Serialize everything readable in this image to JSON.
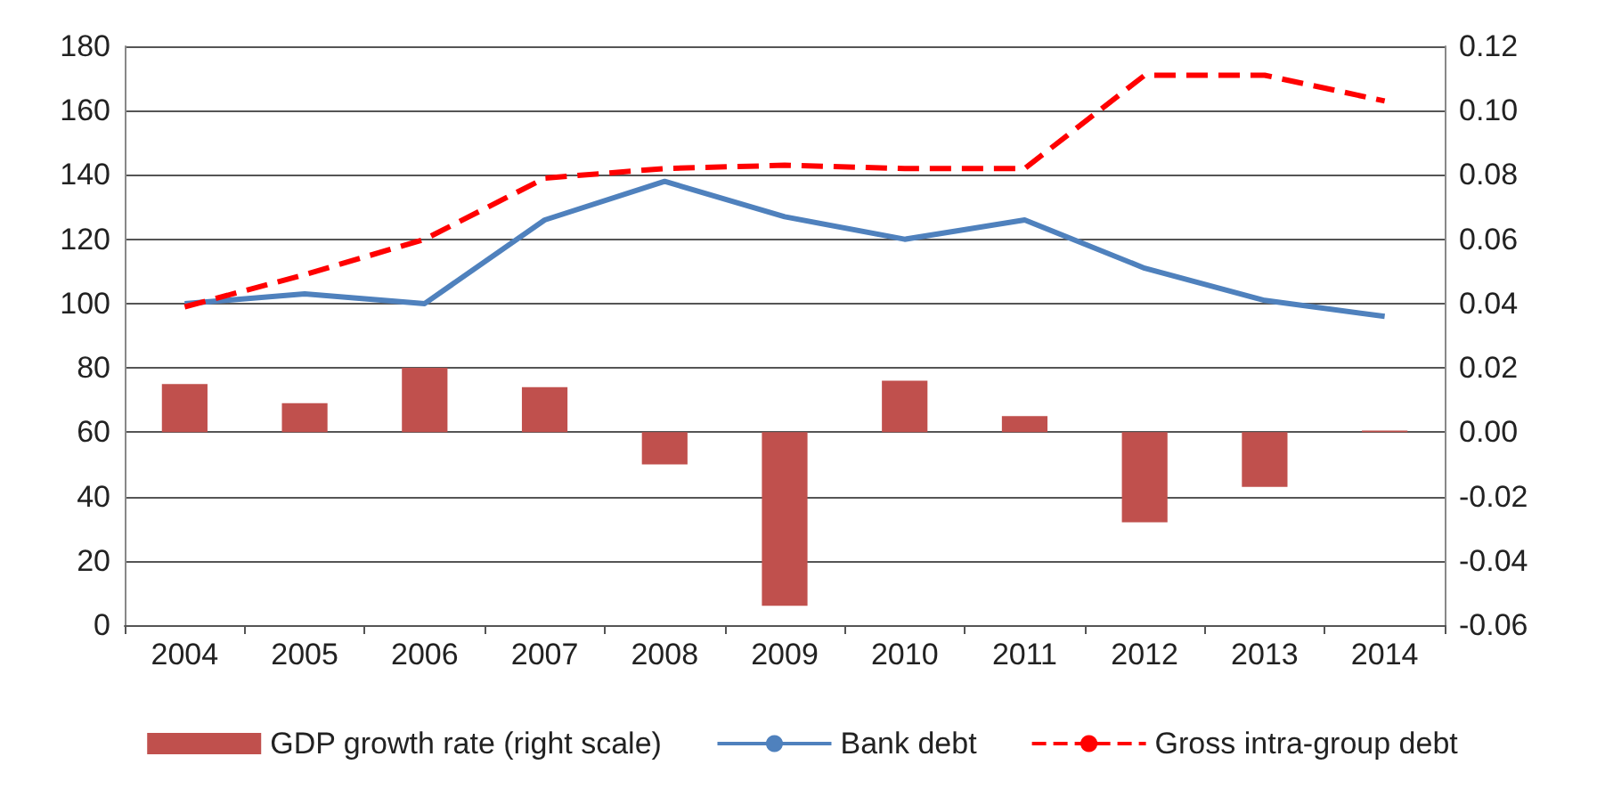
{
  "chart_data": {
    "type": "line",
    "categories": [
      "2004",
      "2005",
      "2006",
      "2007",
      "2008",
      "2009",
      "2010",
      "2011",
      "2012",
      "2013",
      "2014"
    ],
    "series": [
      {
        "name": "GDP growth rate (right scale)",
        "type": "bar",
        "axis": "y2",
        "color": "#c0504d",
        "values": [
          0.015,
          0.009,
          0.02,
          0.014,
          -0.01,
          -0.054,
          0.016,
          0.005,
          -0.028,
          -0.017,
          0.0005
        ]
      },
      {
        "name": "Bank debt",
        "color": "#4f81bd",
        "line_style": "solid",
        "values": [
          100,
          103,
          100,
          126,
          138,
          127,
          120,
          126,
          111,
          101,
          96
        ]
      },
      {
        "name": "Gross intra-group debt",
        "color": "#ff0000",
        "line_style": "dashed",
        "values": [
          99,
          109,
          120,
          139,
          142,
          143,
          142,
          142,
          171,
          171,
          163
        ]
      }
    ],
    "ylim": [
      0,
      180
    ],
    "yticks": [
      0,
      20,
      40,
      60,
      80,
      100,
      120,
      140,
      160,
      180
    ],
    "y2lim": [
      -0.06,
      0.12
    ],
    "y2ticks": [
      {
        "value": -0.06,
        "label": "-0.06"
      },
      {
        "value": -0.04,
        "label": "-0.04"
      },
      {
        "value": -0.02,
        "label": "-0.02"
      },
      {
        "value": 0,
        "label": "0.00"
      },
      {
        "value": 0.02,
        "label": "0.02"
      },
      {
        "value": 0.04,
        "label": "0.04"
      },
      {
        "value": 0.06,
        "label": "0.06"
      },
      {
        "value": 0.08,
        "label": "0.08"
      },
      {
        "value": 0.1,
        "label": "0.10"
      },
      {
        "value": 0.12,
        "label": "0.12"
      }
    ],
    "grid": "y",
    "legend": "bottom",
    "marker": "none"
  }
}
